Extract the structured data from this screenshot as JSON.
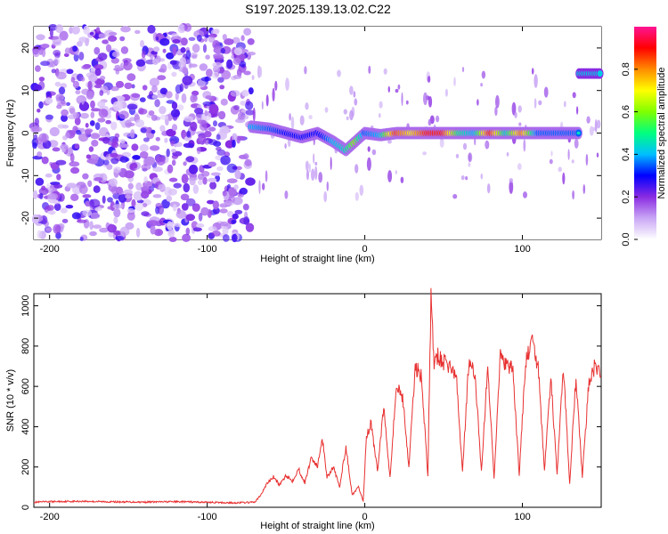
{
  "title": "S197.2025.139.13.02.C22",
  "chart_data": [
    {
      "type": "heatmap",
      "title": "",
      "xlabel": "Height of straight line (km)",
      "ylabel": "Frequency (Hz)",
      "xlim": [
        -210,
        150
      ],
      "ylim": [
        -25,
        25
      ],
      "x_ticks": [
        -200,
        -100,
        0,
        100
      ],
      "y_ticks": [
        -20,
        -10,
        0,
        10,
        20
      ],
      "colorbar": {
        "label": "Normalized spectral amplitude",
        "range": [
          0.0,
          1.0
        ],
        "ticks": [
          0.0,
          0.2,
          0.4,
          0.6,
          0.8
        ],
        "colors": [
          "#ffffff",
          "#c9a6f5",
          "#8a2be2",
          "#0000ff",
          "#00bfff",
          "#00ff7f",
          "#7fff00",
          "#ffff00",
          "#ff8c00",
          "#ff0000",
          "#ff1493"
        ]
      },
      "noise_region_x": [
        -210,
        -72
      ],
      "ridge": {
        "x": [
          -72,
          -60,
          -50,
          -40,
          -30,
          -20,
          -12,
          -6,
          0,
          10,
          20,
          30,
          40,
          50,
          60,
          70,
          80,
          90,
          100,
          110,
          120,
          130,
          136
        ],
        "y": [
          1.5,
          1,
          0,
          -1,
          0,
          -2,
          -4,
          -2,
          0,
          -0.5,
          0,
          0,
          0,
          0,
          0,
          0,
          0,
          0,
          0,
          0,
          0,
          0,
          0
        ],
        "amplitude": [
          0.5,
          0.45,
          0.4,
          0.4,
          0.35,
          0.5,
          0.55,
          0.7,
          0.45,
          0.5,
          0.95,
          0.8,
          0.98,
          0.98,
          0.6,
          0.5,
          0.98,
          0.55,
          0.9,
          0.45,
          0.45,
          0.45,
          0.45
        ]
      },
      "secondary_band": {
        "x": [
          136,
          150
        ],
        "y": 14
      }
    },
    {
      "type": "line",
      "title": "",
      "xlabel": "Height of straight line (km)",
      "ylabel": "SNR (10 * v/v)",
      "xlim": [
        -210,
        150
      ],
      "ylim": [
        0,
        1060
      ],
      "x_ticks": [
        -200,
        -100,
        0,
        100
      ],
      "y_ticks": [
        0,
        200,
        400,
        600,
        800,
        1000
      ],
      "series": [
        {
          "color": "#e83030",
          "x": [
            -210,
            -200,
            -180,
            -160,
            -140,
            -120,
            -100,
            -85,
            -70,
            -66,
            -62,
            -58,
            -54,
            -50,
            -46,
            -42,
            -38,
            -34,
            -30,
            -27,
            -24,
            -20,
            -16,
            -12,
            -8,
            -4,
            -1,
            1,
            4,
            8,
            12,
            16,
            20,
            24,
            28,
            32,
            36,
            40,
            42,
            44,
            46,
            50,
            54,
            58,
            62,
            66,
            70,
            74,
            78,
            82,
            86,
            90,
            94,
            98,
            102,
            106,
            110,
            114,
            118,
            122,
            126,
            130,
            134,
            138,
            142,
            146,
            150
          ],
          "y": [
            25,
            28,
            30,
            27,
            26,
            28,
            25,
            22,
            25,
            60,
            120,
            150,
            110,
            160,
            130,
            190,
            120,
            250,
            200,
            350,
            150,
            200,
            100,
            300,
            60,
            100,
            30,
            350,
            420,
            180,
            500,
            150,
            600,
            550,
            200,
            700,
            650,
            150,
            1050,
            700,
            750,
            720,
            700,
            650,
            180,
            720,
            650,
            180,
            700,
            150,
            750,
            700,
            680,
            160,
            720,
            820,
            700,
            180,
            650,
            160,
            700,
            120,
            650,
            150,
            600,
            700,
            650
          ]
        }
      ]
    }
  ]
}
